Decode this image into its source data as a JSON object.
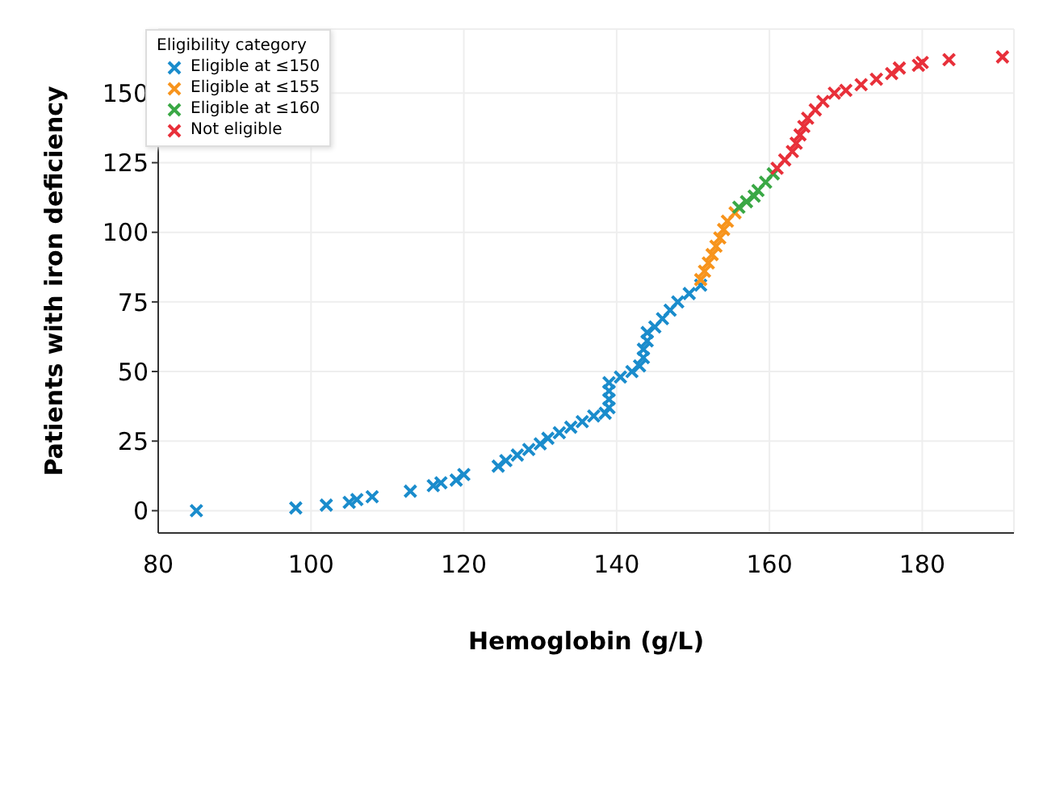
{
  "chart_data": {
    "type": "scatter",
    "xlabel": "Hemoglobin (g/L)",
    "ylabel": "Patients with iron deficiency",
    "legend_title": "Eligibility category",
    "xlim": [
      80,
      192
    ],
    "xticks": [
      80,
      100,
      120,
      140,
      160,
      180
    ],
    "ylim": [
      -8,
      173
    ],
    "yticks": [
      0,
      25,
      50,
      75,
      100,
      125,
      150
    ],
    "grid": true,
    "legend": "top left",
    "marker": "cross",
    "series": [
      {
        "name": "Eligible at ≤150",
        "color": "#1a8ccc",
        "x": [
          85,
          98,
          102,
          105,
          106,
          108,
          113,
          116,
          117,
          119,
          120,
          124.5,
          125.5,
          127,
          128.5,
          130,
          131,
          132.5,
          134,
          135.5,
          137,
          138.5,
          139,
          139,
          139,
          139,
          140.5,
          142,
          143,
          143.5,
          143.5,
          144,
          144,
          145,
          146,
          147,
          148,
          149.5,
          151
        ],
        "values": [
          0,
          1,
          2,
          3,
          4,
          5,
          7,
          9,
          10,
          11,
          13,
          16,
          18,
          20,
          22,
          24,
          26,
          28,
          30,
          32,
          34,
          35,
          37,
          40,
          43,
          46,
          48,
          50,
          52,
          55,
          58,
          61,
          64,
          66,
          69,
          72,
          75,
          78,
          81
        ]
      },
      {
        "name": "Eligible at ≤155",
        "color": "#f7941d",
        "x": [
          151,
          151.5,
          152,
          152.5,
          153,
          153.5,
          154,
          154.5,
          155.5
        ],
        "values": [
          83,
          86,
          89,
          92,
          95,
          98,
          101,
          104,
          107
        ]
      },
      {
        "name": "Eligible at ≤160",
        "color": "#3aa845",
        "x": [
          156,
          157,
          158,
          158.5,
          159.5,
          160.5
        ],
        "values": [
          109,
          111,
          113,
          115,
          118,
          121
        ]
      },
      {
        "name": "Not eligible",
        "color": "#e8303a",
        "x": [
          161,
          162,
          163,
          163.5,
          164,
          164.5,
          165,
          166,
          167,
          168.5,
          170,
          172,
          174,
          176,
          177,
          179.5,
          180,
          183.5,
          190.5
        ],
        "values": [
          123,
          126,
          129,
          132,
          135,
          138,
          141,
          144,
          147,
          150,
          151,
          153,
          155,
          157,
          159,
          160,
          161,
          162,
          163
        ]
      }
    ]
  }
}
